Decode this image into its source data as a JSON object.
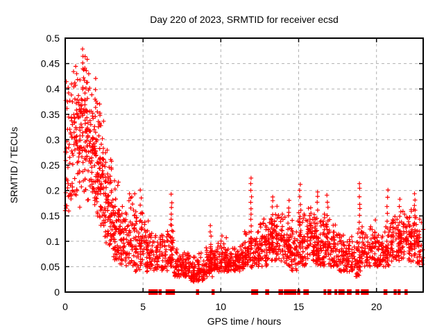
{
  "page": {
    "background_color": "#ffffff",
    "text_color": "#000000"
  },
  "chart_data": {
    "type": "scatter",
    "title": "Day 220 of 2023, SRMTID for receiver ecsd",
    "xlabel": "GPS time / hours",
    "ylabel": "SRMTID / TECUs",
    "xlim": [
      0,
      23
    ],
    "ylim": [
      0,
      0.5
    ],
    "xticks": {
      "values": [
        0,
        5,
        10,
        15,
        20
      ],
      "labels": [
        "0",
        "5",
        "10",
        "15",
        "20"
      ]
    },
    "yticks": {
      "values": [
        0,
        0.05,
        0.1,
        0.15,
        0.2,
        0.25,
        0.3,
        0.35,
        0.4,
        0.45,
        0.5
      ],
      "labels": [
        "0",
        "0.05",
        "0.1",
        "0.15",
        "0.2",
        "0.25",
        "0.3",
        "0.35",
        "0.4",
        "0.45",
        "0.5"
      ]
    },
    "grid": {
      "show": true,
      "color": "#b0b0b0",
      "dash": [
        4,
        4
      ]
    },
    "axis_color": "#000000",
    "marker": {
      "shape": "plus",
      "color": "#ff0000",
      "size": 6.4,
      "stroke_width": 1.2
    },
    "legend": {
      "show": false
    },
    "seed": 12345,
    "bands_format": "[x_start_hours, x_end_hours, point_count, y_min_TECU, y_max_TECU, density_mode_fraction]",
    "distribution_bands": [
      [
        0.0,
        0.5,
        55,
        0.15,
        0.42,
        0.45
      ],
      [
        0.5,
        1.0,
        70,
        0.16,
        0.45,
        0.5
      ],
      [
        1.0,
        1.5,
        80,
        0.18,
        0.48,
        0.5
      ],
      [
        1.5,
        2.0,
        80,
        0.17,
        0.43,
        0.45
      ],
      [
        2.0,
        2.5,
        75,
        0.13,
        0.38,
        0.42
      ],
      [
        2.5,
        3.0,
        70,
        0.09,
        0.31,
        0.38
      ],
      [
        3.0,
        3.5,
        60,
        0.06,
        0.24,
        0.35
      ],
      [
        3.5,
        4.0,
        55,
        0.05,
        0.2,
        0.3
      ],
      [
        4.0,
        4.5,
        50,
        0.05,
        0.25,
        0.25
      ],
      [
        4.5,
        5.0,
        50,
        0.04,
        0.2,
        0.28
      ],
      [
        5.0,
        5.5,
        45,
        0.04,
        0.18,
        0.3
      ],
      [
        5.5,
        6.0,
        40,
        0.04,
        0.14,
        0.3
      ],
      [
        6.0,
        6.5,
        40,
        0.04,
        0.13,
        0.3
      ],
      [
        6.5,
        7.0,
        40,
        0.04,
        0.16,
        0.3
      ],
      [
        7.0,
        7.5,
        45,
        0.03,
        0.1,
        0.3
      ],
      [
        7.5,
        8.0,
        50,
        0.03,
        0.09,
        0.3
      ],
      [
        8.0,
        8.5,
        55,
        0.02,
        0.08,
        0.3
      ],
      [
        8.5,
        9.0,
        50,
        0.02,
        0.09,
        0.3
      ],
      [
        9.0,
        9.5,
        50,
        0.03,
        0.11,
        0.3
      ],
      [
        9.5,
        10.0,
        50,
        0.04,
        0.11,
        0.3
      ],
      [
        10.0,
        10.5,
        50,
        0.04,
        0.12,
        0.3
      ],
      [
        10.5,
        11.0,
        45,
        0.04,
        0.1,
        0.3
      ],
      [
        11.0,
        11.5,
        45,
        0.04,
        0.11,
        0.3
      ],
      [
        11.5,
        12.0,
        45,
        0.05,
        0.13,
        0.35
      ],
      [
        12.0,
        12.5,
        45,
        0.05,
        0.13,
        0.35
      ],
      [
        12.5,
        13.0,
        50,
        0.05,
        0.16,
        0.35
      ],
      [
        13.0,
        13.5,
        55,
        0.06,
        0.18,
        0.4
      ],
      [
        13.5,
        14.0,
        55,
        0.06,
        0.17,
        0.4
      ],
      [
        14.0,
        14.5,
        50,
        0.05,
        0.17,
        0.35
      ],
      [
        14.5,
        15.0,
        45,
        0.04,
        0.15,
        0.35
      ],
      [
        15.0,
        15.5,
        50,
        0.05,
        0.18,
        0.35
      ],
      [
        15.5,
        16.0,
        60,
        0.06,
        0.18,
        0.4
      ],
      [
        16.0,
        16.5,
        55,
        0.05,
        0.16,
        0.35
      ],
      [
        16.5,
        17.0,
        55,
        0.05,
        0.17,
        0.35
      ],
      [
        17.0,
        17.5,
        50,
        0.05,
        0.14,
        0.35
      ],
      [
        17.5,
        18.0,
        45,
        0.04,
        0.13,
        0.35
      ],
      [
        18.0,
        18.5,
        45,
        0.04,
        0.12,
        0.35
      ],
      [
        18.5,
        19.0,
        45,
        0.03,
        0.13,
        0.35
      ],
      [
        19.0,
        19.5,
        45,
        0.05,
        0.14,
        0.35
      ],
      [
        19.5,
        20.0,
        45,
        0.05,
        0.15,
        0.35
      ],
      [
        20.0,
        20.5,
        45,
        0.05,
        0.13,
        0.35
      ],
      [
        20.5,
        21.0,
        45,
        0.05,
        0.14,
        0.35
      ],
      [
        21.0,
        21.5,
        50,
        0.06,
        0.16,
        0.4
      ],
      [
        21.5,
        22.0,
        50,
        0.06,
        0.17,
        0.4
      ],
      [
        22.0,
        22.5,
        55,
        0.06,
        0.18,
        0.4
      ],
      [
        22.5,
        23.0,
        40,
        0.05,
        0.16,
        0.4
      ]
    ],
    "streaks_format": "[x_hours, y_min_TECU, y_max_TECU, point_count]",
    "vertical_streaks": [
      [
        1.15,
        0.44,
        0.48,
        4
      ],
      [
        2.2,
        0.2,
        0.37,
        9
      ],
      [
        3.2,
        0.08,
        0.22,
        9
      ],
      [
        4.85,
        0.05,
        0.2,
        11
      ],
      [
        6.82,
        0.05,
        0.19,
        13
      ],
      [
        9.35,
        0.04,
        0.13,
        9
      ],
      [
        11.95,
        0.05,
        0.225,
        16
      ],
      [
        13.3,
        0.08,
        0.19,
        10
      ],
      [
        14.35,
        0.08,
        0.18,
        8
      ],
      [
        15.1,
        0.06,
        0.21,
        13
      ],
      [
        16.2,
        0.07,
        0.2,
        11
      ],
      [
        16.85,
        0.1,
        0.19,
        8
      ],
      [
        18.9,
        0.07,
        0.215,
        12
      ],
      [
        20.7,
        0.07,
        0.2,
        10
      ],
      [
        21.5,
        0.08,
        0.18,
        8
      ],
      [
        22.45,
        0.09,
        0.195,
        10
      ]
    ],
    "zero_value_runs_hours": [
      [
        5.35,
        5.95
      ],
      [
        6.0,
        6.2
      ],
      [
        6.45,
        7.05
      ],
      [
        8.4,
        8.6
      ],
      [
        9.4,
        9.6
      ],
      [
        11.95,
        12.4
      ],
      [
        12.85,
        13.1
      ],
      [
        13.7,
        14.0
      ],
      [
        14.05,
        14.85
      ],
      [
        14.9,
        15.1
      ],
      [
        15.3,
        15.65
      ],
      [
        16.6,
        16.75
      ],
      [
        16.85,
        17.1
      ],
      [
        17.3,
        17.4
      ],
      [
        17.55,
        17.95
      ],
      [
        18.1,
        18.4
      ],
      [
        18.65,
        18.9
      ],
      [
        19.0,
        19.5
      ],
      [
        20.45,
        20.7
      ],
      [
        21.1,
        21.3
      ],
      [
        21.35,
        21.55
      ],
      [
        21.8,
        22.0
      ]
    ]
  }
}
